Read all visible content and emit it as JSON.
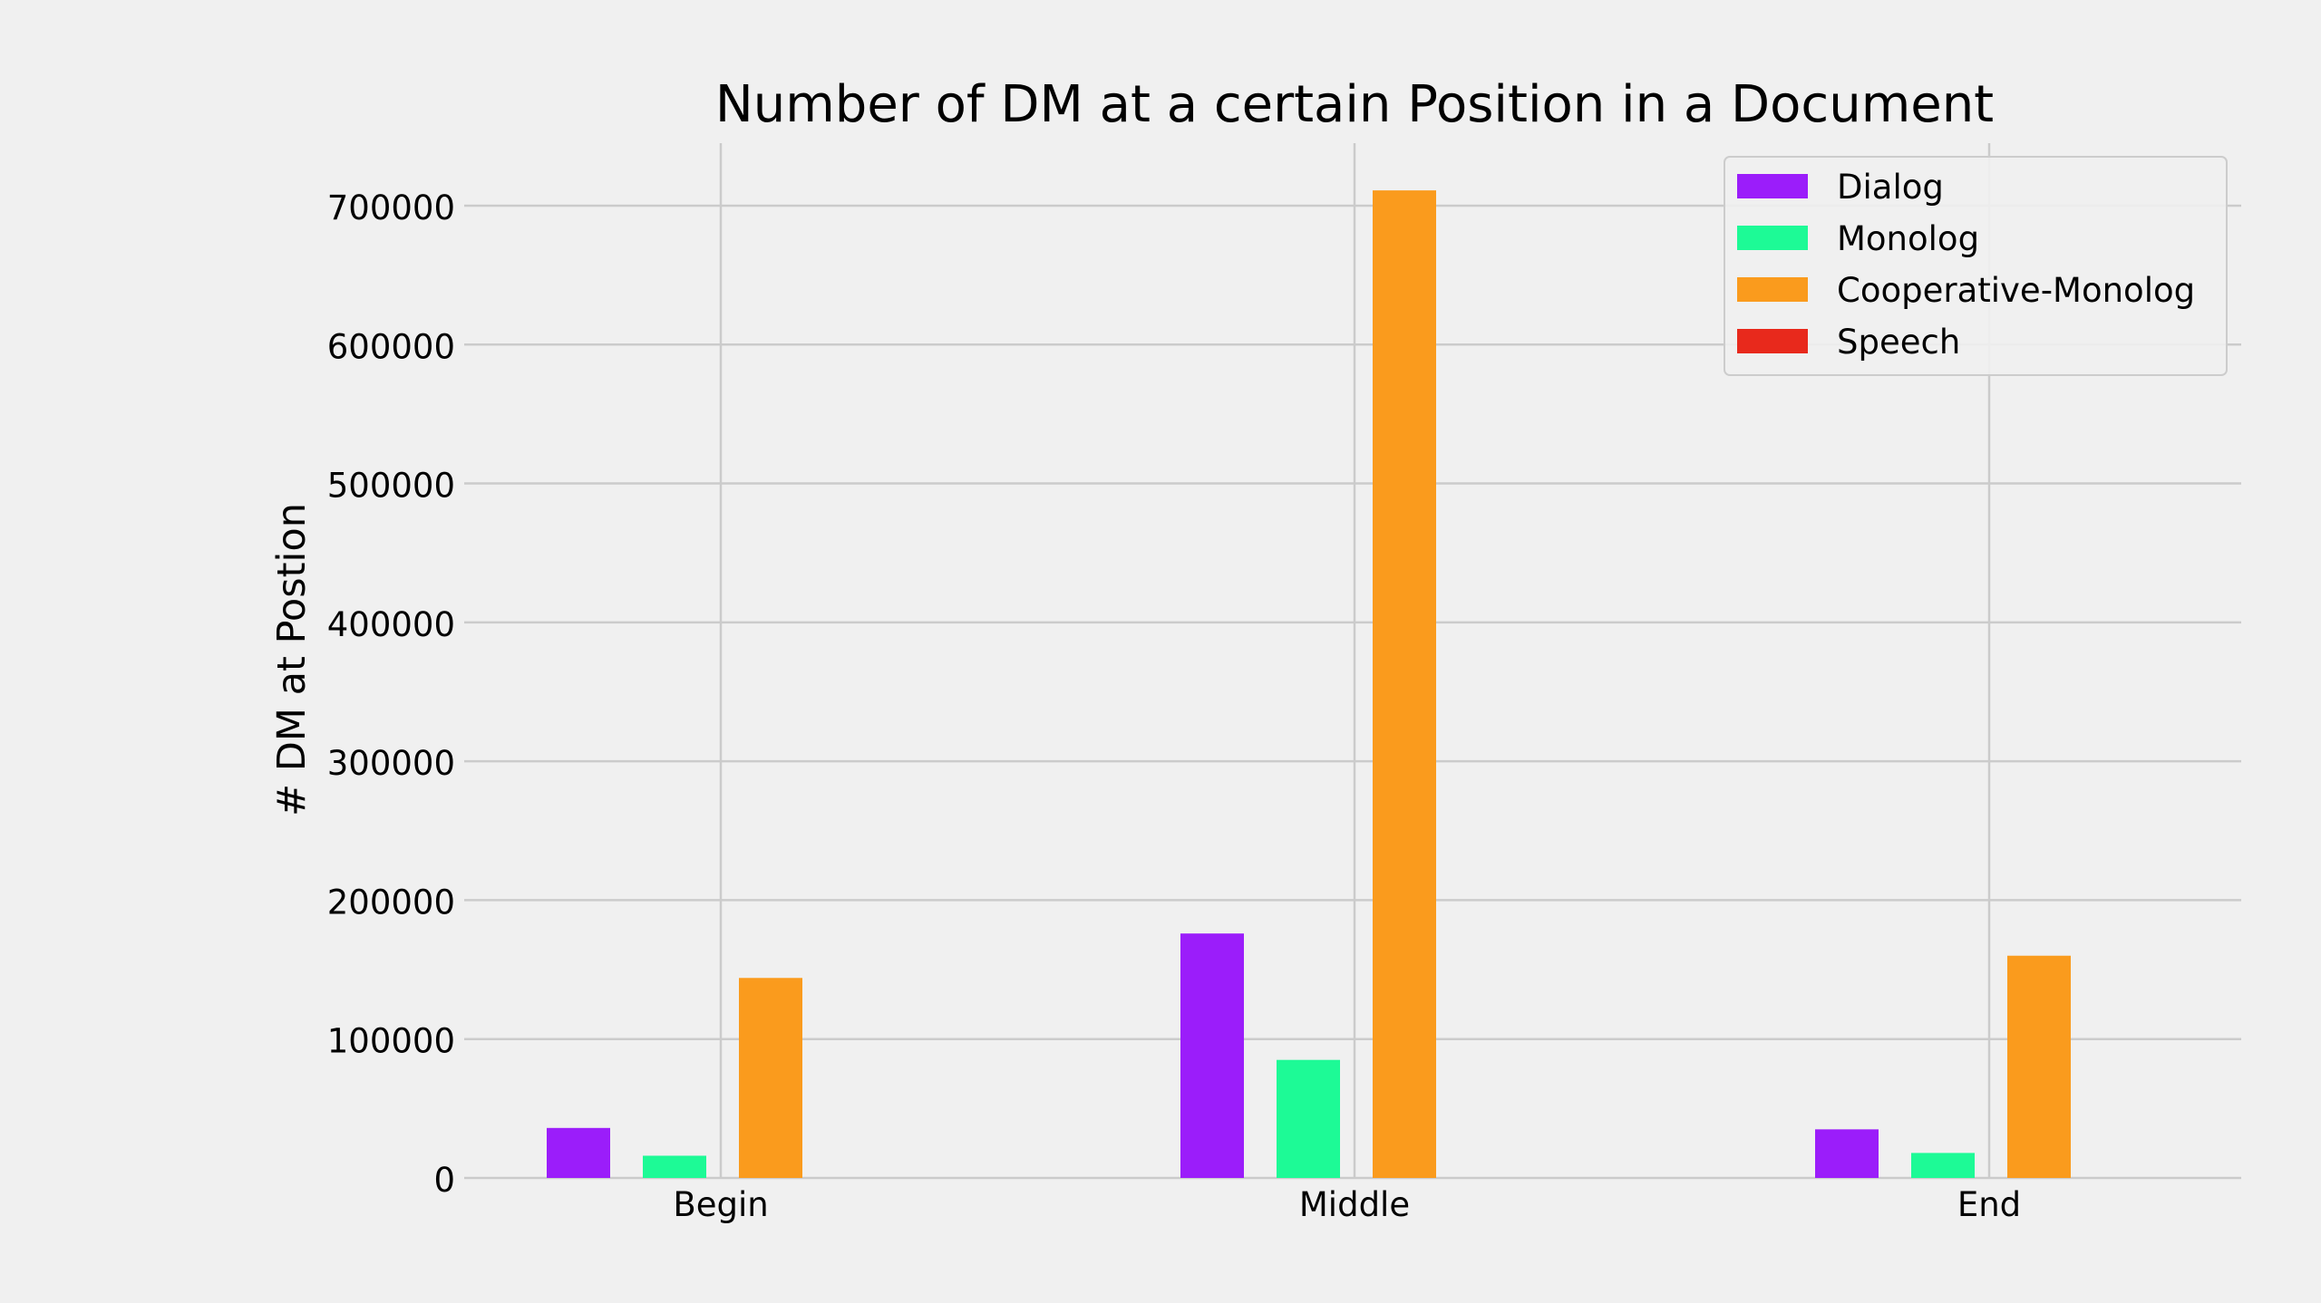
{
  "chart_data": {
    "type": "bar",
    "title": "Number of DM at a certain Position in a Document",
    "xlabel": "",
    "ylabel": "# DM at Postion",
    "categories": [
      "Begin",
      "Middle",
      "End"
    ],
    "series": [
      {
        "name": "Dialog",
        "color": "#9b1dfa",
        "values": [
          36000,
          176000,
          35000
        ]
      },
      {
        "name": "Monolog",
        "color": "#1dfa96",
        "values": [
          16000,
          85000,
          18000
        ]
      },
      {
        "name": "Cooperative-Monolog",
        "color": "#fa9b1d",
        "values": [
          144000,
          711000,
          160000
        ]
      },
      {
        "name": "Speech",
        "color": "#e8291c",
        "values": [
          0,
          0,
          0
        ]
      }
    ],
    "ylim": [
      0,
      745000
    ],
    "yticks": [
      0,
      100000,
      200000,
      300000,
      400000,
      500000,
      600000,
      700000
    ],
    "grid": true,
    "legend_position": "top-right",
    "background": "#f0f0f0",
    "grid_color": "#cbcbcb"
  }
}
